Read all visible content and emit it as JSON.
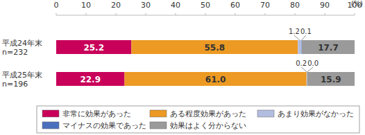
{
  "chart_data": {
    "type": "bar",
    "orientation": "horizontal",
    "stacked": true,
    "data_labels": true,
    "grid": false,
    "legend": "bottom",
    "x_label": "(%)",
    "xlim": [
      0,
      100
    ],
    "xticks": [
      0,
      10,
      20,
      30,
      40,
      50,
      60,
      70,
      80,
      90,
      100
    ],
    "categories": [
      "平成24年末\nn=232",
      "平成25年末\nn=196"
    ],
    "series": [
      {
        "name": "非常に効果があった",
        "color": "#c8005a",
        "values": [
          25.2,
          22.9
        ],
        "value_labels": [
          "25.2",
          "22.9"
        ]
      },
      {
        "name": "ある程度効果があった",
        "color": "#ec9a23",
        "values": [
          55.8,
          61.0
        ],
        "value_labels": [
          "55.8",
          "61.0"
        ]
      },
      {
        "name": "あまり効果がなかった",
        "color": "#b3bddf",
        "values": [
          1.2,
          0.2
        ],
        "value_labels": [
          "1.2",
          "0.2"
        ]
      },
      {
        "name": "マイナスの効果であった",
        "color": "#4a70bd",
        "values": [
          0.1,
          0.0
        ],
        "value_labels": [
          "0.1",
          "0.0"
        ]
      },
      {
        "name": "効果はよく分からない",
        "color": "#9a9a9a",
        "values": [
          17.7,
          15.9
        ],
        "value_labels": [
          "17.7",
          "15.9"
        ]
      }
    ]
  }
}
